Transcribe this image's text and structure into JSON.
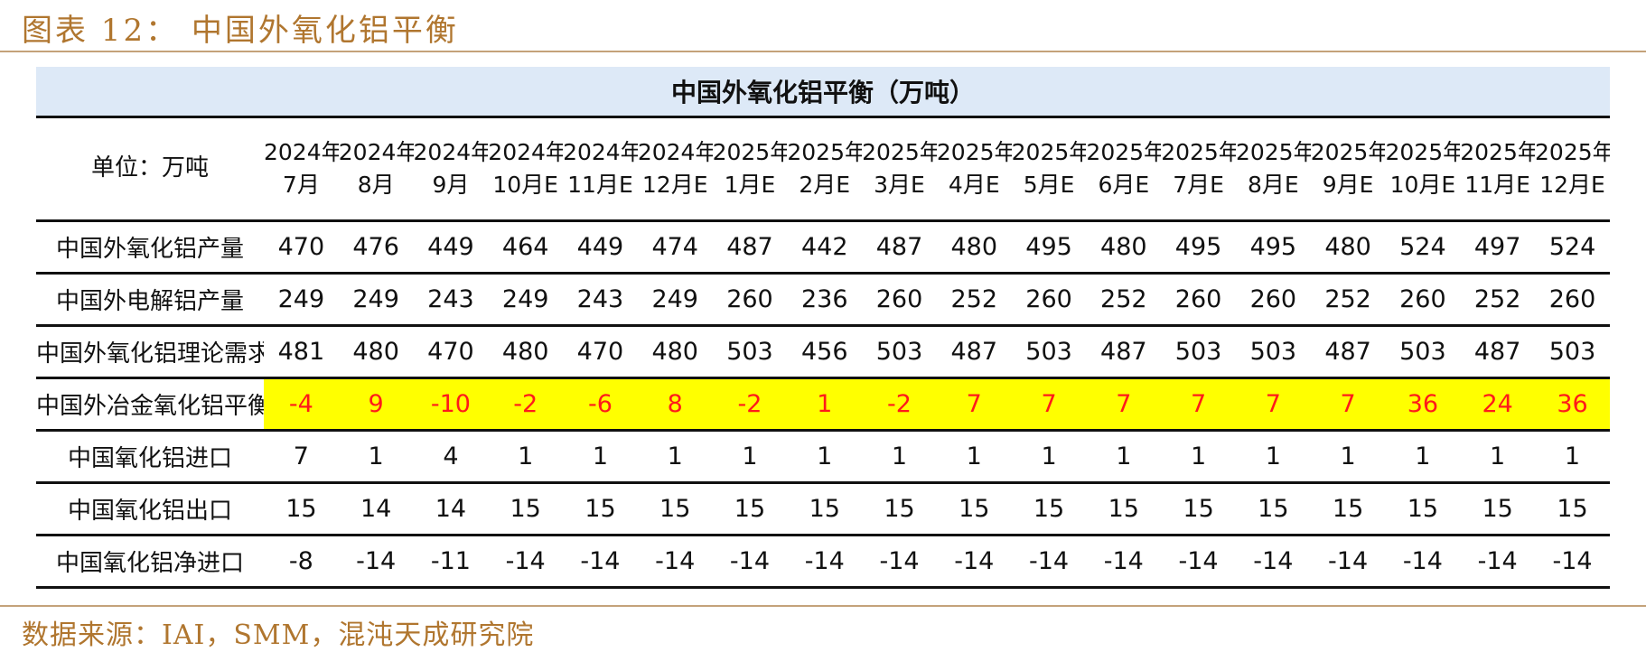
{
  "figure_title": "图表 12： 中国外氧化铝平衡",
  "table": {
    "caption": "中国外氧化铝平衡（万吨）",
    "unit_label": "单位：万吨",
    "columns": [
      {
        "year": "2024年",
        "month": "7月"
      },
      {
        "year": "2024年",
        "month": "8月"
      },
      {
        "year": "2024年",
        "month": "9月"
      },
      {
        "year": "2024年",
        "month": "10月E"
      },
      {
        "year": "2024年",
        "month": "11月E"
      },
      {
        "year": "2024年",
        "month": "12月E"
      },
      {
        "year": "2025年",
        "month": "1月E"
      },
      {
        "year": "2025年",
        "month": "2月E"
      },
      {
        "year": "2025年",
        "month": "3月E"
      },
      {
        "year": "2025年",
        "month": "4月E"
      },
      {
        "year": "2025年",
        "month": "5月E"
      },
      {
        "year": "2025年",
        "month": "6月E"
      },
      {
        "year": "2025年",
        "month": "7月E"
      },
      {
        "year": "2025年",
        "month": "8月E"
      },
      {
        "year": "2025年",
        "month": "9月E"
      },
      {
        "year": "2025年",
        "month": "10月E"
      },
      {
        "year": "2025年",
        "month": "11月E"
      },
      {
        "year": "2025年",
        "month": "12月E"
      }
    ],
    "rows": [
      {
        "label": "中国外氧化铝产量",
        "highlight": false,
        "values": [
          "470",
          "476",
          "449",
          "464",
          "449",
          "474",
          "487",
          "442",
          "487",
          "480",
          "495",
          "480",
          "495",
          "495",
          "480",
          "524",
          "497",
          "524"
        ]
      },
      {
        "label": "中国外电解铝产量",
        "highlight": false,
        "values": [
          "249",
          "249",
          "243",
          "249",
          "243",
          "249",
          "260",
          "236",
          "260",
          "252",
          "260",
          "252",
          "260",
          "260",
          "252",
          "260",
          "252",
          "260"
        ]
      },
      {
        "label": "中国外氧化铝理论需求",
        "highlight": false,
        "values": [
          "481",
          "480",
          "470",
          "480",
          "470",
          "480",
          "503",
          "456",
          "503",
          "487",
          "503",
          "487",
          "503",
          "503",
          "487",
          "503",
          "487",
          "503"
        ]
      },
      {
        "label": "中国外冶金氧化铝平衡",
        "highlight": true,
        "values": [
          "-4",
          "9",
          "-10",
          "-2",
          "-6",
          "8",
          "-2",
          "1",
          "-2",
          "7",
          "7",
          "7",
          "7",
          "7",
          "7",
          "36",
          "24",
          "36"
        ]
      },
      {
        "label": "中国氧化铝进口",
        "highlight": false,
        "values": [
          "7",
          "1",
          "4",
          "1",
          "1",
          "1",
          "1",
          "1",
          "1",
          "1",
          "1",
          "1",
          "1",
          "1",
          "1",
          "1",
          "1",
          "1"
        ]
      },
      {
        "label": "中国氧化铝出口",
        "highlight": false,
        "values": [
          "15",
          "14",
          "14",
          "15",
          "15",
          "15",
          "15",
          "15",
          "15",
          "15",
          "15",
          "15",
          "15",
          "15",
          "15",
          "15",
          "15",
          "15"
        ]
      },
      {
        "label": "中国氧化铝净进口",
        "highlight": false,
        "values": [
          "-8",
          "-14",
          "-11",
          "-14",
          "-14",
          "-14",
          "-14",
          "-14",
          "-14",
          "-14",
          "-14",
          "-14",
          "-14",
          "-14",
          "-14",
          "-14",
          "-14",
          "-14"
        ]
      }
    ]
  },
  "source": "数据来源：IAI，SMM，混沌天成研究院",
  "colors": {
    "title_text": "#b0762f",
    "caption_bg": "#dde9f7",
    "highlight_bg": "#ffff00",
    "highlight_text": "#ff1a1a",
    "rule": "#c4a27a"
  }
}
